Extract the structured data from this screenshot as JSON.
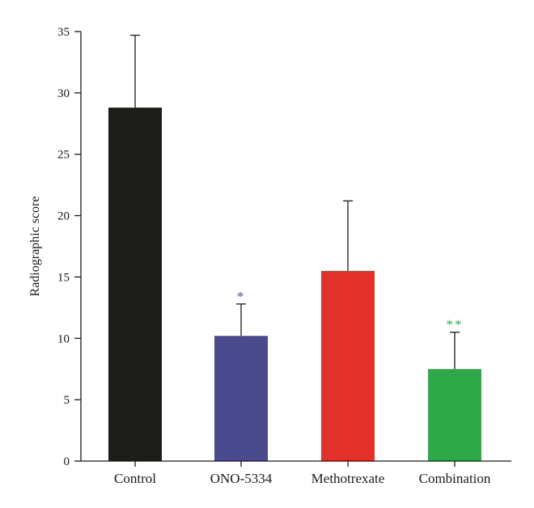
{
  "chart_data": {
    "type": "bar",
    "title": "",
    "xlabel": "",
    "ylabel": "Radiographic score",
    "ylim": [
      0,
      35
    ],
    "yticks": [
      0,
      5,
      10,
      15,
      20,
      25,
      30,
      35
    ],
    "grid": false,
    "categories": [
      "Control",
      "ONO-5334",
      "Methotrexate",
      "Combination"
    ],
    "values": [
      28.8,
      10.2,
      15.5,
      7.5
    ],
    "error_upper": [
      34.7,
      12.8,
      21.2,
      10.5
    ],
    "colors": [
      "#1c1c18",
      "#4b4a8c",
      "#e2302b",
      "#2fa84a"
    ],
    "annotations": [
      {
        "category": "ONO-5334",
        "text": "*",
        "color": "#4b4a8c"
      },
      {
        "category": "Combination",
        "text": "**",
        "color": "#2fa84a"
      }
    ]
  }
}
